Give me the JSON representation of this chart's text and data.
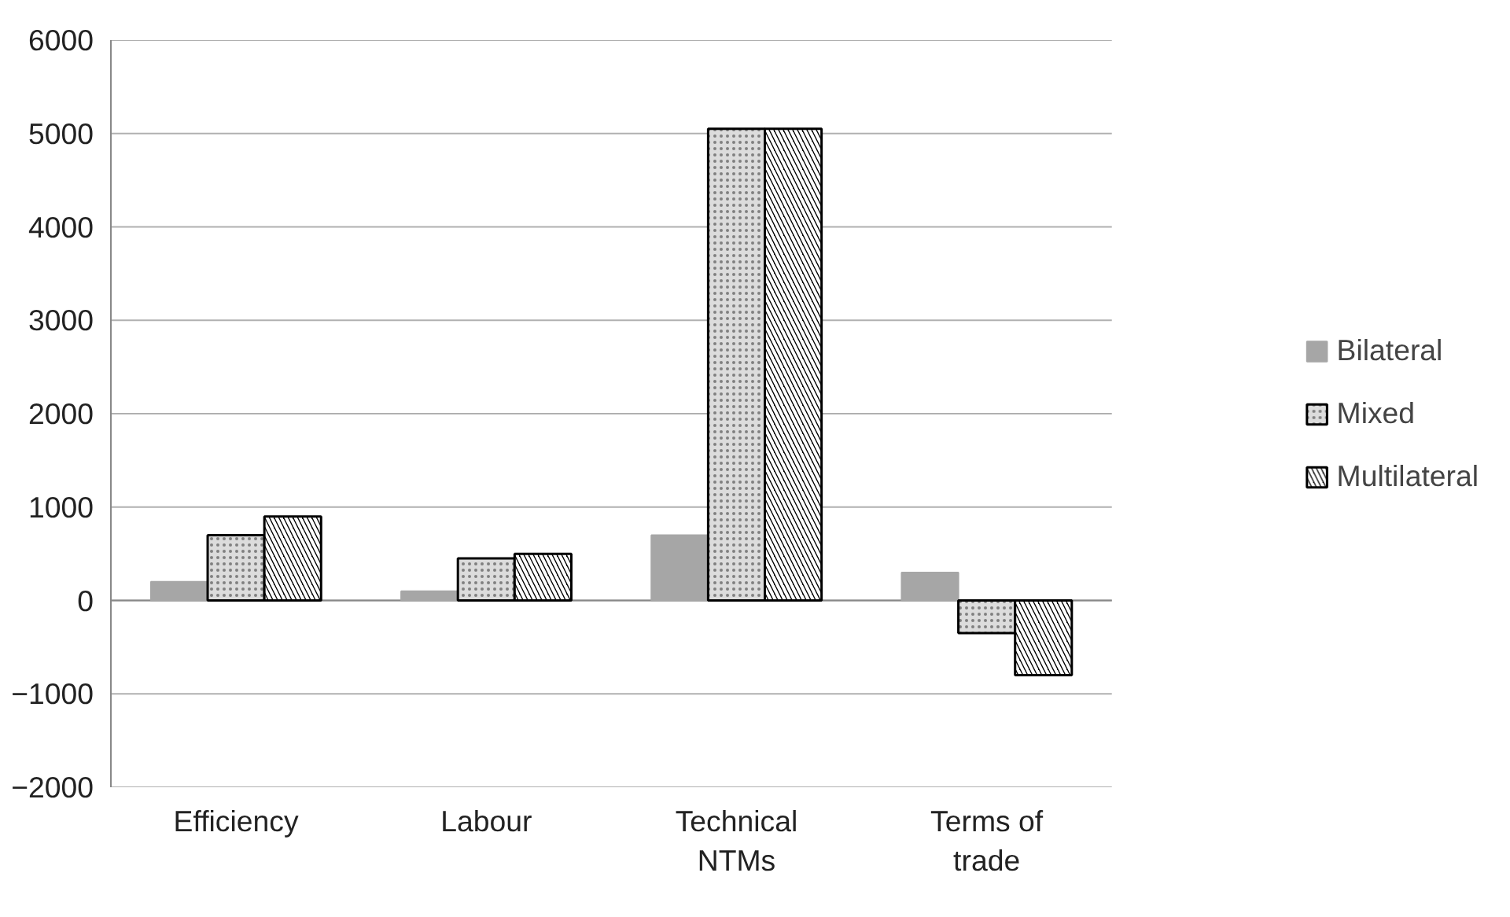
{
  "chart_data": {
    "type": "bar",
    "categories": [
      "Efficiency",
      "Labour",
      "Technical\nNTMs",
      "Terms of\ntrade"
    ],
    "series": [
      {
        "name": "Bilateral",
        "color": "#a6a6a6",
        "values": [
          200,
          100,
          700,
          300
        ]
      },
      {
        "name": "Mixed",
        "color": "#dcdcdc",
        "values": [
          700,
          450,
          5050,
          -350
        ]
      },
      {
        "name": "Multilateral",
        "color": "#000000",
        "values": [
          900,
          500,
          5050,
          -800
        ]
      }
    ],
    "ylim": [
      -2000,
      6000
    ],
    "yticks": [
      -2000,
      -1000,
      0,
      1000,
      2000,
      3000,
      4000,
      5000,
      6000
    ],
    "grid": "y",
    "legend": "right"
  }
}
